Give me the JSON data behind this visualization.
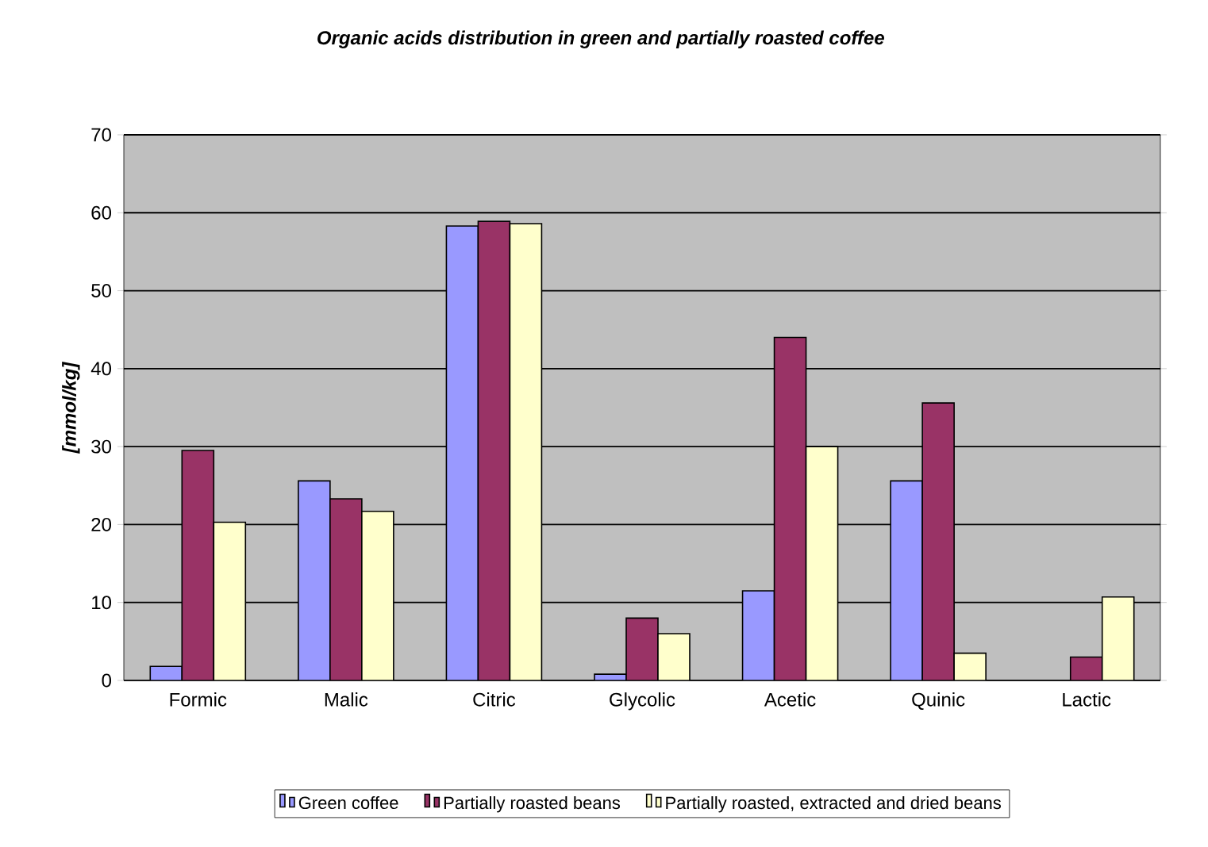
{
  "chart_data": {
    "type": "bar",
    "title": "Organic acids distribution in green and partially roasted coffee",
    "ylabel": "[mmol/kg]",
    "categories": [
      "Formic",
      "Malic",
      "Citric",
      "Glycolic",
      "Acetic",
      "Quinic",
      "Lactic"
    ],
    "series": [
      {
        "name": "Green coffee",
        "color": "#9999ff",
        "values": [
          1.8,
          25.6,
          58.3,
          0.8,
          11.5,
          25.6,
          null
        ]
      },
      {
        "name": "Partially roasted beans",
        "color": "#993366",
        "values": [
          29.5,
          23.3,
          58.9,
          8.0,
          44.0,
          35.6,
          3.0
        ]
      },
      {
        "name": "Partially roasted, extracted and dried beans",
        "color": "#ffffcc",
        "values": [
          20.3,
          21.7,
          58.6,
          6.0,
          30.0,
          3.5,
          10.7
        ]
      }
    ],
    "ylim": [
      0,
      70
    ],
    "yticks": [
      0,
      10,
      20,
      30,
      40,
      50,
      60,
      70
    ],
    "grid": "y",
    "legend": "bottom"
  }
}
